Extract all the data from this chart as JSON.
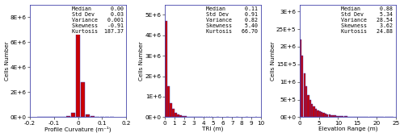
{
  "chart1": {
    "xlabel": "Profile Curvature (m⁻¹)",
    "ylabel": "Cells Number",
    "xlim": [
      -0.2,
      0.2
    ],
    "ylim": [
      0,
      9000000.0
    ],
    "xticks": [
      -0.2,
      -0.1,
      0.0,
      0.1,
      0.2
    ],
    "xtick_labels": [
      "-0.2",
      "-0.1",
      "0",
      "0.1",
      "0.2"
    ],
    "yticks": [
      0,
      2000000,
      4000000,
      6000000,
      8000000
    ],
    "ytick_labels": [
      "0E+0",
      "2E+6",
      "4E+6",
      "6E+6",
      "8E+6"
    ],
    "stats": [
      [
        "Median",
        "0.00"
      ],
      [
        "Std Dev",
        "0.03"
      ],
      [
        "Variance",
        "0.001"
      ],
      [
        "Skewness",
        "-0.91"
      ],
      [
        "Kurtosis",
        "187.37"
      ]
    ],
    "bar_color": "#cc0000",
    "edge_color": "#3333bb",
    "bars": [
      [
        -0.16,
        2000
      ],
      [
        -0.14,
        3000
      ],
      [
        -0.12,
        5000
      ],
      [
        -0.1,
        10000
      ],
      [
        -0.08,
        25000
      ],
      [
        -0.06,
        50000
      ],
      [
        -0.04,
        120000
      ],
      [
        -0.02,
        350000
      ],
      [
        0.0,
        7000000
      ],
      [
        0.02,
        2800000
      ],
      [
        0.04,
        250000
      ],
      [
        0.06,
        80000
      ],
      [
        0.08,
        30000
      ],
      [
        0.1,
        12000
      ],
      [
        0.12,
        5000
      ],
      [
        0.14,
        2000
      ]
    ],
    "bar_width": 0.018
  },
  "chart2": {
    "xlabel": "TRI (m)",
    "ylabel": "Cells Number",
    "xlim": [
      0,
      10
    ],
    "ylim": [
      0,
      5500000.0
    ],
    "xticks": [
      0,
      1,
      2,
      3,
      4,
      5,
      6,
      7,
      8,
      9,
      10
    ],
    "xtick_labels": [
      "0",
      "1",
      "2",
      "3",
      "4",
      "5",
      "6",
      "7",
      "8",
      "9",
      "10"
    ],
    "yticks": [
      0,
      1000000,
      2000000,
      3000000,
      4000000,
      5000000
    ],
    "ytick_labels": [
      "0E+0",
      "1E+6",
      "2E+6",
      "3E+6",
      "4E+6",
      "5E+6"
    ],
    "stats": [
      [
        "Median",
        "0.11"
      ],
      [
        "Std Dev",
        "0.91"
      ],
      [
        "Variance",
        "0.82"
      ],
      [
        "Skewness",
        "5.40"
      ],
      [
        "Kurtosis",
        "66.70"
      ]
    ],
    "bar_color": "#cc0000",
    "edge_color": "#3333bb",
    "bars": [
      [
        0.125,
        4700000
      ],
      [
        0.375,
        1500000
      ],
      [
        0.625,
        700000
      ],
      [
        0.875,
        400000
      ],
      [
        1.125,
        220000
      ],
      [
        1.375,
        130000
      ],
      [
        1.625,
        85000
      ],
      [
        1.875,
        58000
      ],
      [
        2.125,
        42000
      ],
      [
        2.375,
        30000
      ],
      [
        2.625,
        22000
      ],
      [
        2.875,
        17000
      ],
      [
        3.125,
        13000
      ],
      [
        3.375,
        10000
      ],
      [
        3.625,
        8000
      ],
      [
        3.875,
        6500
      ],
      [
        4.125,
        5500
      ],
      [
        4.375,
        4500
      ],
      [
        4.625,
        3800
      ],
      [
        4.875,
        3200
      ],
      [
        5.5,
        5000
      ],
      [
        6.5,
        3000
      ],
      [
        7.5,
        2000
      ],
      [
        8.5,
        1500
      ],
      [
        9.5,
        1000
      ]
    ],
    "bar_width": 0.24
  },
  "chart3": {
    "xlabel": "Elevation Range (m)",
    "ylabel": "Cells Number",
    "xlim": [
      0,
      25
    ],
    "ylim": [
      0,
      3200000.0
    ],
    "xticks": [
      0,
      5,
      10,
      15,
      20,
      25
    ],
    "xtick_labels": [
      "0",
      "5",
      "10",
      "15",
      "20",
      "25"
    ],
    "yticks": [
      0,
      500000,
      1000000,
      1500000,
      2000000,
      2500000,
      3000000
    ],
    "ytick_labels": [
      "0E+0",
      "5E+5",
      "1E+6",
      "2E+6",
      "2E+6",
      "3E+6",
      "3E+6"
    ],
    "stats": [
      [
        "Median",
        "0.88"
      ],
      [
        "Std Dev",
        "5.34"
      ],
      [
        "Variance",
        "28.54"
      ],
      [
        "Skewness",
        "3.62"
      ],
      [
        "Kurtosis",
        "24.88"
      ]
    ],
    "bar_color": "#cc0000",
    "edge_color": "#3333bb",
    "bars": [
      [
        0.25,
        2200000
      ],
      [
        0.75,
        1750000
      ],
      [
        1.25,
        1250000
      ],
      [
        1.75,
        870000
      ],
      [
        2.25,
        630000
      ],
      [
        2.75,
        480000
      ],
      [
        3.25,
        375000
      ],
      [
        3.75,
        295000
      ],
      [
        4.25,
        240000
      ],
      [
        4.75,
        198000
      ],
      [
        5.25,
        163000
      ],
      [
        5.75,
        135000
      ],
      [
        6.25,
        113000
      ],
      [
        6.75,
        95000
      ],
      [
        7.25,
        81000
      ],
      [
        7.75,
        70000
      ],
      [
        8.25,
        61000
      ],
      [
        8.75,
        53000
      ],
      [
        9.25,
        46000
      ],
      [
        9.75,
        40000
      ],
      [
        10.25,
        35000
      ],
      [
        10.75,
        31000
      ],
      [
        11.25,
        27000
      ],
      [
        11.75,
        24000
      ],
      [
        12.25,
        21000
      ],
      [
        12.75,
        18500
      ],
      [
        13.25,
        16500
      ],
      [
        13.75,
        14500
      ],
      [
        14.25,
        13000
      ],
      [
        14.75,
        11500
      ],
      [
        15.25,
        10200
      ],
      [
        15.75,
        9100
      ],
      [
        16.25,
        8100
      ],
      [
        16.75,
        7200
      ],
      [
        17.25,
        6400
      ],
      [
        17.75,
        5700
      ],
      [
        18.25,
        5100
      ],
      [
        18.75,
        4500
      ],
      [
        19.25,
        4000
      ],
      [
        19.75,
        3600
      ],
      [
        20.25,
        3200
      ],
      [
        20.75,
        2800
      ],
      [
        21.25,
        2500
      ],
      [
        21.75,
        2200
      ],
      [
        22.25,
        1950
      ],
      [
        22.75,
        1730
      ],
      [
        23.25,
        1540
      ],
      [
        23.75,
        1360
      ],
      [
        24.25,
        1200
      ]
    ],
    "bar_width": 0.48
  },
  "bg_color": "#ffffff",
  "text_color": "#000000",
  "font_size": 5.2,
  "stats_font_size": 4.8,
  "spine_color": "#4444aa"
}
